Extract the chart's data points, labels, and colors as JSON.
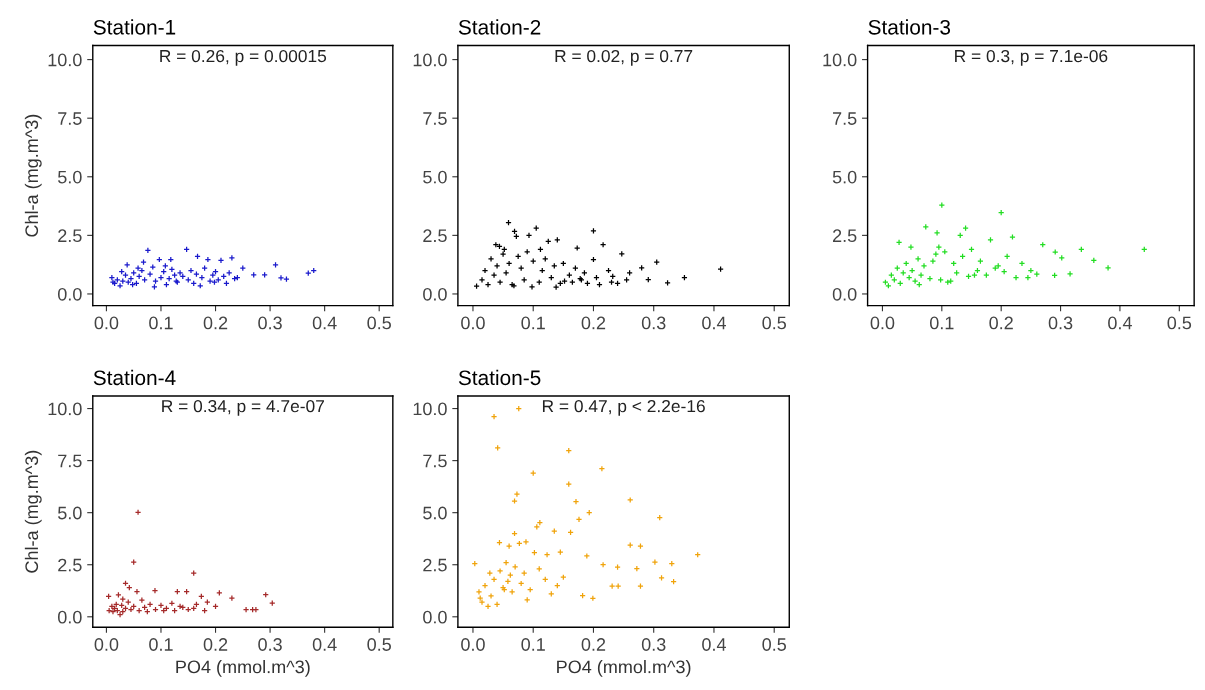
{
  "chart_data": [
    {
      "type": "scatter",
      "title": "Station-1",
      "ylabel": "Chl-a (mg.m^3)",
      "color": "#1a1acc",
      "marker": "cross",
      "grid": false,
      "annotations": [
        "R = 0.26, p = 0.00015"
      ],
      "xlim": [
        -0.025,
        0.525
      ],
      "ylim": [
        -0.5,
        10.6
      ],
      "xticks": [
        {
          "value": 0,
          "label": "0.0"
        },
        {
          "value": 0.1,
          "label": "0.1"
        },
        {
          "value": 0.2,
          "label": "0.2"
        },
        {
          "value": 0.3,
          "label": "0.3"
        },
        {
          "value": 0.4,
          "label": "0.4"
        },
        {
          "value": 0.5,
          "label": "0.5"
        }
      ],
      "yticks": [
        {
          "value": 0,
          "label": "0.0"
        },
        {
          "value": 2.5,
          "label": "2.5"
        },
        {
          "value": 5,
          "label": "5.0"
        },
        {
          "value": 7.5,
          "label": "7.5"
        },
        {
          "value": 10,
          "label": "10.0"
        }
      ],
      "x": [
        0.076,
        0.147,
        0.167,
        0.186,
        0.23,
        0.21,
        0.31,
        0.38,
        0.37,
        0.27,
        0.29,
        0.32,
        0.33,
        0.25,
        0.097,
        0.118,
        0.038,
        0.068,
        0.01,
        0.015,
        0.02,
        0.025,
        0.03,
        0.035,
        0.04,
        0.045,
        0.05,
        0.055,
        0.06,
        0.065,
        0.07,
        0.08,
        0.085,
        0.09,
        0.1,
        0.105,
        0.11,
        0.115,
        0.12,
        0.125,
        0.13,
        0.135,
        0.14,
        0.15,
        0.155,
        0.16,
        0.165,
        0.175,
        0.18,
        0.19,
        0.195,
        0.2,
        0.205,
        0.215,
        0.22,
        0.225,
        0.235,
        0.24,
        0.012,
        0.028,
        0.048,
        0.058,
        0.088,
        0.108,
        0.128,
        0.172,
        0.198
      ],
      "values": [
        1.86,
        1.9,
        1.6,
        1.47,
        1.54,
        1.43,
        1.24,
        1.0,
        0.89,
        0.81,
        0.81,
        0.69,
        0.63,
        1.1,
        1.47,
        1.47,
        1.24,
        1.36,
        0.7,
        0.45,
        0.6,
        0.35,
        0.55,
        0.8,
        0.5,
        0.65,
        0.9,
        0.45,
        0.75,
        1.0,
        0.6,
        0.85,
        1.15,
        0.55,
        0.7,
        0.95,
        0.4,
        0.65,
        1.05,
        0.8,
        0.5,
        0.9,
        0.75,
        0.6,
        1.0,
        0.45,
        0.85,
        0.7,
        1.1,
        0.55,
        0.8,
        0.95,
        0.6,
        0.75,
        0.45,
        0.9,
        0.65,
        0.7,
        0.5,
        0.95,
        0.4,
        1.1,
        0.3,
        1.2,
        0.55,
        0.35,
        0.5
      ]
    },
    {
      "type": "scatter",
      "title": "Station-2",
      "color": "#000000",
      "marker": "cross",
      "grid": false,
      "annotations": [
        "R = 0.02, p = 0.77"
      ],
      "xlim": [
        -0.025,
        0.525
      ],
      "ylim": [
        -0.5,
        10.6
      ],
      "xticks": [
        {
          "value": 0,
          "label": "0.0"
        },
        {
          "value": 0.1,
          "label": "0.1"
        },
        {
          "value": 0.2,
          "label": "0.2"
        },
        {
          "value": 0.3,
          "label": "0.3"
        },
        {
          "value": 0.4,
          "label": "0.4"
        },
        {
          "value": 0.5,
          "label": "0.5"
        }
      ],
      "yticks": [
        {
          "value": 0,
          "label": "0.0"
        },
        {
          "value": 2.5,
          "label": "2.5"
        },
        {
          "value": 5,
          "label": "5.0"
        },
        {
          "value": 7.5,
          "label": "7.5"
        },
        {
          "value": 10,
          "label": "10.0"
        }
      ],
      "x": [
        0.059,
        0.105,
        0.2,
        0.069,
        0.093,
        0.072,
        0.044,
        0.173,
        0.216,
        0.247,
        0.28,
        0.305,
        0.291,
        0.323,
        0.351,
        0.411,
        0.14,
        0.125,
        0.2,
        0.138,
        0.006,
        0.015,
        0.02,
        0.025,
        0.03,
        0.035,
        0.04,
        0.045,
        0.05,
        0.055,
        0.06,
        0.065,
        0.075,
        0.08,
        0.085,
        0.09,
        0.1,
        0.11,
        0.115,
        0.12,
        0.13,
        0.135,
        0.145,
        0.15,
        0.16,
        0.165,
        0.17,
        0.18,
        0.185,
        0.19,
        0.205,
        0.21,
        0.225,
        0.23,
        0.24,
        0.255,
        0.26,
        0.038,
        0.052,
        0.068,
        0.098,
        0.112,
        0.152,
        0.178,
        0.232
      ],
      "values": [
        3.04,
        2.81,
        2.69,
        2.67,
        2.5,
        2.46,
        2.03,
        1.96,
        2.1,
        1.71,
        1.11,
        1.36,
        0.61,
        0.47,
        0.7,
        1.06,
        2.31,
        2.24,
        1.47,
        0.29,
        0.33,
        0.6,
        1.0,
        0.4,
        1.5,
        0.8,
        1.2,
        0.5,
        1.7,
        0.9,
        1.3,
        0.4,
        1.6,
        1.1,
        0.6,
        1.8,
        1.4,
        0.5,
        1.0,
        1.5,
        0.7,
        1.2,
        0.45,
        1.3,
        0.8,
        0.5,
        1.1,
        0.6,
        0.9,
        0.45,
        0.7,
        0.4,
        1.0,
        0.5,
        0.45,
        0.6,
        0.9,
        2.1,
        1.9,
        0.35,
        0.3,
        1.9,
        0.55,
        0.65,
        0.75
      ]
    },
    {
      "type": "scatter",
      "title": "Station-3",
      "color": "#22dd22",
      "marker": "cross",
      "grid": false,
      "annotations": [
        "R = 0.3, p = 7.1e-06"
      ],
      "xlim": [
        -0.025,
        0.525
      ],
      "ylim": [
        -0.5,
        10.6
      ],
      "xticks": [
        {
          "value": 0,
          "label": "0.0"
        },
        {
          "value": 0.1,
          "label": "0.1"
        },
        {
          "value": 0.2,
          "label": "0.2"
        },
        {
          "value": 0.3,
          "label": "0.3"
        },
        {
          "value": 0.4,
          "label": "0.4"
        },
        {
          "value": 0.5,
          "label": "0.5"
        }
      ],
      "yticks": [
        {
          "value": 0,
          "label": "0.0"
        },
        {
          "value": 2.5,
          "label": "2.5"
        },
        {
          "value": 5,
          "label": "5.0"
        },
        {
          "value": 7.5,
          "label": "7.5"
        },
        {
          "value": 10,
          "label": "10.0"
        }
      ],
      "x": [
        0.1,
        0.2,
        0.073,
        0.092,
        0.14,
        0.131,
        0.182,
        0.219,
        0.441,
        0.335,
        0.356,
        0.38,
        0.291,
        0.27,
        0.302,
        0.316,
        0.29,
        0.005,
        0.01,
        0.015,
        0.02,
        0.025,
        0.03,
        0.035,
        0.04,
        0.045,
        0.05,
        0.055,
        0.06,
        0.065,
        0.07,
        0.08,
        0.085,
        0.09,
        0.095,
        0.105,
        0.11,
        0.12,
        0.125,
        0.135,
        0.145,
        0.15,
        0.16,
        0.165,
        0.175,
        0.19,
        0.205,
        0.21,
        0.225,
        0.235,
        0.25,
        0.26,
        0.028,
        0.048,
        0.062,
        0.098,
        0.115,
        0.155,
        0.195,
        0.245
      ],
      "values": [
        3.79,
        3.47,
        2.86,
        2.61,
        2.81,
        2.5,
        2.31,
        2.43,
        1.9,
        1.9,
        1.43,
        1.11,
        1.79,
        2.1,
        1.54,
        0.86,
        0.79,
        0.5,
        0.35,
        0.8,
        0.6,
        1.1,
        0.45,
        0.9,
        1.3,
        0.7,
        1.0,
        0.55,
        1.5,
        0.8,
        1.2,
        0.65,
        1.4,
        1.7,
        2.0,
        1.8,
        0.5,
        1.3,
        0.9,
        1.6,
        0.75,
        1.9,
        1.0,
        1.4,
        0.8,
        1.1,
        0.95,
        1.6,
        0.7,
        1.3,
        1.0,
        0.85,
        2.2,
        2.0,
        0.4,
        0.6,
        0.55,
        0.8,
        1.2,
        0.7
      ]
    },
    {
      "type": "scatter",
      "title": "Station-4",
      "xlabel": "PO4 (mmol.m^3)",
      "ylabel": "Chl-a (mg.m^3)",
      "color": "#a52a2a",
      "marker": "cross",
      "grid": false,
      "annotations": [
        "R = 0.34, p = 4.7e-07"
      ],
      "xlim": [
        -0.025,
        0.525
      ],
      "ylim": [
        -0.5,
        10.6
      ],
      "xticks": [
        {
          "value": 0,
          "label": "0.0"
        },
        {
          "value": 0.1,
          "label": "0.1"
        },
        {
          "value": 0.2,
          "label": "0.2"
        },
        {
          "value": 0.3,
          "label": "0.3"
        },
        {
          "value": 0.4,
          "label": "0.4"
        },
        {
          "value": 0.5,
          "label": "0.5"
        }
      ],
      "yticks": [
        {
          "value": 0,
          "label": "0.0"
        },
        {
          "value": 2.5,
          "label": "2.5"
        },
        {
          "value": 5,
          "label": "5.0"
        },
        {
          "value": 7.5,
          "label": "7.5"
        },
        {
          "value": 10,
          "label": "10.0"
        }
      ],
      "x": [
        0.058,
        0.05,
        0.16,
        0.035,
        0.292,
        0.304,
        0.207,
        0.23,
        0.147,
        0.13,
        0.089,
        0.056,
        0.004,
        0.174,
        0.256,
        0.268,
        0.274,
        0.005,
        0.01,
        0.012,
        0.015,
        0.018,
        0.02,
        0.022,
        0.025,
        0.028,
        0.03,
        0.035,
        0.04,
        0.045,
        0.05,
        0.06,
        0.065,
        0.07,
        0.08,
        0.09,
        0.1,
        0.11,
        0.12,
        0.125,
        0.135,
        0.14,
        0.15,
        0.16,
        0.165,
        0.18,
        0.185,
        0.2,
        0.03,
        0.042,
        0.075,
        0.105
      ],
      "values": [
        5.02,
        2.63,
        2.1,
        1.61,
        1.06,
        0.66,
        1.15,
        0.9,
        1.21,
        1.21,
        1.26,
        1.21,
        0.98,
        0.98,
        0.34,
        0.34,
        0.34,
        0.3,
        0.5,
        0.25,
        0.4,
        0.6,
        0.3,
        1.05,
        0.1,
        0.55,
        0.25,
        0.4,
        0.7,
        0.35,
        0.5,
        0.3,
        0.8,
        0.45,
        0.6,
        0.35,
        0.55,
        0.4,
        0.65,
        0.3,
        0.5,
        0.45,
        0.35,
        0.4,
        0.6,
        0.3,
        0.7,
        0.5,
        0.85,
        1.4,
        0.25,
        0.3
      ]
    },
    {
      "type": "scatter",
      "title": "Station-5",
      "xlabel": "PO4 (mmol.m^3)",
      "color": "#f0a30a",
      "marker": "cross",
      "grid": false,
      "annotations": [
        "R = 0.47, p < 2.2e-16"
      ],
      "xlim": [
        -0.025,
        0.525
      ],
      "ylim": [
        -0.5,
        10.6
      ],
      "xticks": [
        {
          "value": 0,
          "label": "0.0"
        },
        {
          "value": 0.1,
          "label": "0.1"
        },
        {
          "value": 0.2,
          "label": "0.2"
        },
        {
          "value": 0.3,
          "label": "0.3"
        },
        {
          "value": 0.4,
          "label": "0.4"
        },
        {
          "value": 0.5,
          "label": "0.5"
        }
      ],
      "yticks": [
        {
          "value": 0,
          "label": "0.0"
        },
        {
          "value": 2.5,
          "label": "2.5"
        },
        {
          "value": 5,
          "label": "5.0"
        },
        {
          "value": 7.5,
          "label": "7.5"
        },
        {
          "value": 10,
          "label": "10.0"
        }
      ],
      "x": [
        0.035,
        0.076,
        0.041,
        0.159,
        0.214,
        0.1,
        0.159,
        0.261,
        0.073,
        0.069,
        0.171,
        0.31,
        0.176,
        0.193,
        0.111,
        0.106,
        0.135,
        0.162,
        0.069,
        0.044,
        0.261,
        0.278,
        0.373,
        0.003,
        0.302,
        0.33,
        0.313,
        0.333,
        0.278,
        0.231,
        0.241,
        0.199,
        0.182,
        0.09,
        0.272,
        0.24,
        0.216,
        0.189,
        0.145,
        0.123,
        0.102,
        0.088,
        0.077,
        0.06,
        0.01,
        0.015,
        0.02,
        0.025,
        0.03,
        0.035,
        0.04,
        0.045,
        0.05,
        0.055,
        0.058,
        0.062,
        0.065,
        0.07,
        0.08,
        0.085,
        0.095,
        0.11,
        0.12,
        0.13,
        0.14,
        0.15,
        0.012,
        0.028,
        0.052
      ],
      "values": [
        9.61,
        10.0,
        8.11,
        7.98,
        7.11,
        6.9,
        6.37,
        5.61,
        5.89,
        5.56,
        5.53,
        4.76,
        4.68,
        5.0,
        4.52,
        4.32,
        4.11,
        4.05,
        4.0,
        3.56,
        3.44,
        3.39,
        2.98,
        2.55,
        2.63,
        2.55,
        1.87,
        1.69,
        1.47,
        1.47,
        1.47,
        0.89,
        1.02,
        0.81,
        2.31,
        2.39,
        2.5,
        2.92,
        3.11,
        2.98,
        3.08,
        3.6,
        3.52,
        3.39,
        1.2,
        0.7,
        1.5,
        0.5,
        1.0,
        1.8,
        0.6,
        2.2,
        1.4,
        2.6,
        1.7,
        2.0,
        1.2,
        2.4,
        1.6,
        2.1,
        1.3,
        2.3,
        1.8,
        1.1,
        1.5,
        1.9,
        0.9,
        2.1,
        1.3
      ]
    }
  ]
}
